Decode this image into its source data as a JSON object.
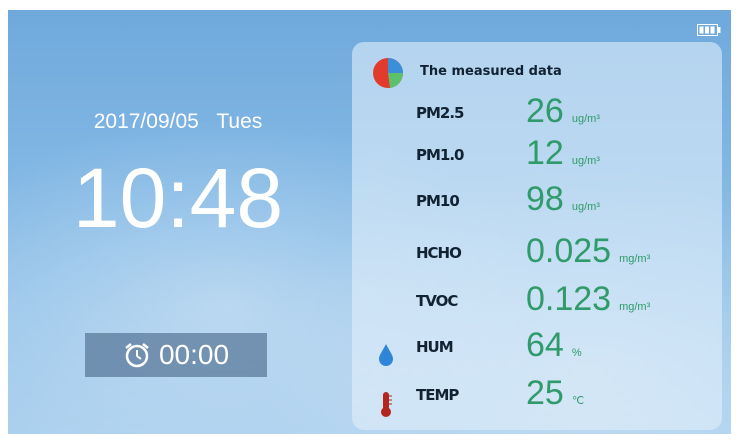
{
  "status": {
    "date": "2017/09/05",
    "weekday": "Tues",
    "time": "10:48",
    "alarm": "00:00"
  },
  "panel": {
    "title": "The measured data",
    "readings": [
      {
        "label": "PM2.5",
        "value": "26",
        "unit": "ug/m³"
      },
      {
        "label": "PM1.0",
        "value": "12",
        "unit": "ug/m³"
      },
      {
        "label": "PM10",
        "value": "98",
        "unit": "ug/m³"
      },
      {
        "label": "HCHO",
        "value": "0.025",
        "unit": "mg/m³"
      },
      {
        "label": "TVOC",
        "value": "0.123",
        "unit": "mg/m³"
      },
      {
        "label": "HUM",
        "value": "64",
        "unit": "%"
      },
      {
        "label": "TEMP",
        "value": "25",
        "unit": "℃"
      }
    ]
  }
}
